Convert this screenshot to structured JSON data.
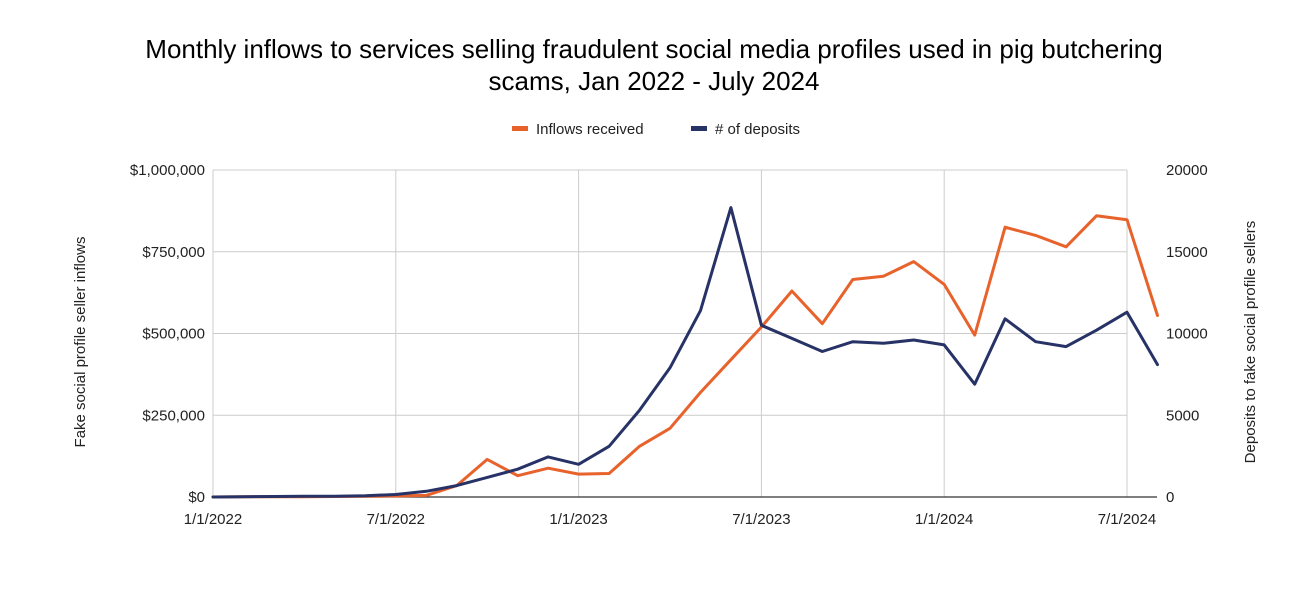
{
  "chart_data": {
    "type": "line",
    "title_line1": "Monthly inflows to services selling fraudulent social media profiles used in pig butchering",
    "title_line2": "scams, Jan 2022 - July 2024",
    "ylabel_left": "Fake social profile seller inflows",
    "ylabel_right": "Deposits to fake social profile sellers",
    "ylim_left": [
      0,
      1000000
    ],
    "ylim_right": [
      0,
      20000
    ],
    "left_ticks": [
      {
        "value": 0,
        "label": "$0"
      },
      {
        "value": 250000,
        "label": "$250,000"
      },
      {
        "value": 500000,
        "label": "$500,000"
      },
      {
        "value": 750000,
        "label": "$750,000"
      },
      {
        "value": 1000000,
        "label": "$1,000,000"
      }
    ],
    "right_ticks": [
      {
        "value": 0,
        "label": "0"
      },
      {
        "value": 5000,
        "label": "5000"
      },
      {
        "value": 10000,
        "label": "10000"
      },
      {
        "value": 15000,
        "label": "15000"
      },
      {
        "value": 20000,
        "label": "20000"
      }
    ],
    "x_ticks": [
      {
        "index": 0,
        "label": "1/1/2022"
      },
      {
        "index": 6,
        "label": "7/1/2022"
      },
      {
        "index": 12,
        "label": "1/1/2023"
      },
      {
        "index": 18,
        "label": "7/1/2023"
      },
      {
        "index": 24,
        "label": "1/1/2024"
      },
      {
        "index": 30,
        "label": "7/1/2024"
      }
    ],
    "x": [
      "2022-01",
      "2022-02",
      "2022-03",
      "2022-04",
      "2022-05",
      "2022-06",
      "2022-07",
      "2022-08",
      "2022-09",
      "2022-10",
      "2022-11",
      "2022-12",
      "2023-01",
      "2023-02",
      "2023-03",
      "2023-04",
      "2023-05",
      "2023-06",
      "2023-07",
      "2023-08",
      "2023-09",
      "2023-10",
      "2023-11",
      "2023-12",
      "2024-01",
      "2024-02",
      "2024-03",
      "2024-04",
      "2024-05",
      "2024-06",
      "2024-07",
      "2024-08"
    ],
    "legend_position": "top-center",
    "grid": true,
    "series": [
      {
        "name": "Inflows received",
        "color": "#e8622c",
        "axis": "left",
        "values": [
          0,
          500,
          800,
          1000,
          1500,
          2000,
          3000,
          5000,
          35000,
          115000,
          65000,
          88000,
          70000,
          72000,
          155000,
          210000,
          320000,
          420000,
          520000,
          630000,
          530000,
          665000,
          675000,
          720000,
          650000,
          495000,
          825000,
          800000,
          765000,
          860000,
          848000,
          555000
        ]
      },
      {
        "name": "# of deposits",
        "color": "#273266",
        "axis": "right",
        "values": [
          0,
          20,
          30,
          40,
          50,
          80,
          150,
          350,
          700,
          1200,
          1700,
          2450,
          2000,
          3100,
          5300,
          7900,
          11400,
          17700,
          10500,
          9700,
          8900,
          9500,
          9400,
          9600,
          9300,
          6900,
          10900,
          9500,
          9200,
          10200,
          11300,
          8100
        ]
      }
    ]
  }
}
